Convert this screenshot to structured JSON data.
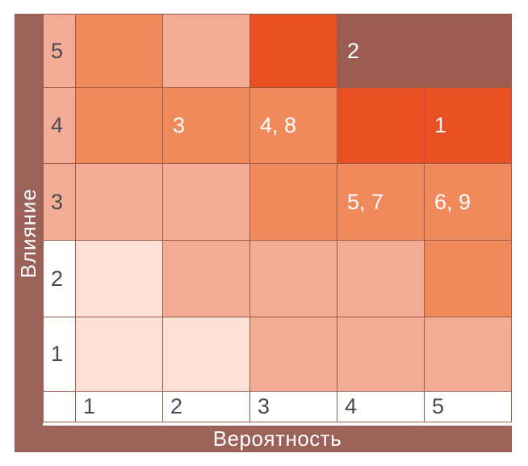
{
  "axes": {
    "y_label": "Влияние",
    "x_label": "Вероятность"
  },
  "colors": {
    "bar": "#9C6159",
    "maroon": "#9D5C52",
    "red": "#E75023",
    "orange": "#F08A5C",
    "salmon": "#F5AC96",
    "light": "#FBE0D5",
    "white": "#FFFFFF",
    "grid_line": "#9E5A49",
    "label_text": "#4A4A4D",
    "cell_text": "#FFFFFF"
  },
  "matrix": {
    "rows": [
      {
        "label": "5",
        "label_bg": "salmon",
        "cells": [
          {
            "bg": "orange",
            "text": ""
          },
          {
            "bg": "salmon",
            "text": ""
          },
          {
            "bg": "red",
            "text": ""
          },
          {
            "bg": "maroon",
            "text": "2",
            "span": 2
          }
        ]
      },
      {
        "label": "4",
        "label_bg": "salmon",
        "cells": [
          {
            "bg": "orange",
            "text": ""
          },
          {
            "bg": "orange",
            "text": "3"
          },
          {
            "bg": "orange",
            "text": "4, 8"
          },
          {
            "bg": "red",
            "text": ""
          },
          {
            "bg": "red",
            "text": "1"
          }
        ]
      },
      {
        "label": "3",
        "label_bg": "salmon",
        "cells": [
          {
            "bg": "salmon",
            "text": ""
          },
          {
            "bg": "salmon",
            "text": ""
          },
          {
            "bg": "orange",
            "text": ""
          },
          {
            "bg": "orange",
            "text": "5, 7"
          },
          {
            "bg": "orange",
            "text": "6, 9"
          }
        ]
      },
      {
        "label": "2",
        "label_bg": "white",
        "cells": [
          {
            "bg": "light",
            "text": ""
          },
          {
            "bg": "salmon",
            "text": ""
          },
          {
            "bg": "salmon",
            "text": ""
          },
          {
            "bg": "salmon",
            "text": ""
          },
          {
            "bg": "orange",
            "text": ""
          }
        ]
      },
      {
        "label": "1",
        "label_bg": "white",
        "cells": [
          {
            "bg": "light",
            "text": ""
          },
          {
            "bg": "light",
            "text": ""
          },
          {
            "bg": "salmon",
            "text": ""
          },
          {
            "bg": "salmon",
            "text": ""
          },
          {
            "bg": "salmon",
            "text": ""
          }
        ]
      }
    ],
    "footer": [
      "1",
      "2",
      "3",
      "4",
      "5"
    ]
  },
  "chart_data": {
    "type": "heatmap",
    "title": "",
    "xlabel": "Вероятность",
    "ylabel": "Влияние",
    "x_categories": [
      1,
      2,
      3,
      4,
      5
    ],
    "y_categories": [
      5,
      4,
      3,
      2,
      1
    ],
    "severity_levels": [
      "light",
      "salmon",
      "orange",
      "red",
      "maroon"
    ],
    "cell_severity_by_row": [
      [
        "orange",
        "salmon",
        "red",
        "maroon",
        "maroon"
      ],
      [
        "orange",
        "orange",
        "orange",
        "red",
        "red"
      ],
      [
        "salmon",
        "salmon",
        "orange",
        "orange",
        "orange"
      ],
      [
        "light",
        "salmon",
        "salmon",
        "salmon",
        "orange"
      ],
      [
        "light",
        "light",
        "salmon",
        "salmon",
        "salmon"
      ]
    ],
    "merged_cells": [
      {
        "impact": 5,
        "probability_from": 4,
        "probability_to": 5,
        "severity": "maroon",
        "items": [
          2
        ]
      }
    ],
    "items": [
      {
        "id": 1,
        "probability": 5,
        "impact": 4
      },
      {
        "id": 2,
        "probability": 4,
        "impact": 5
      },
      {
        "id": 3,
        "probability": 2,
        "impact": 4
      },
      {
        "id": 4,
        "probability": 3,
        "impact": 4
      },
      {
        "id": 5,
        "probability": 4,
        "impact": 3
      },
      {
        "id": 6,
        "probability": 5,
        "impact": 3
      },
      {
        "id": 7,
        "probability": 4,
        "impact": 3
      },
      {
        "id": 8,
        "probability": 3,
        "impact": 4
      },
      {
        "id": 9,
        "probability": 5,
        "impact": 3
      }
    ],
    "legend_position": "none",
    "grid": true
  }
}
